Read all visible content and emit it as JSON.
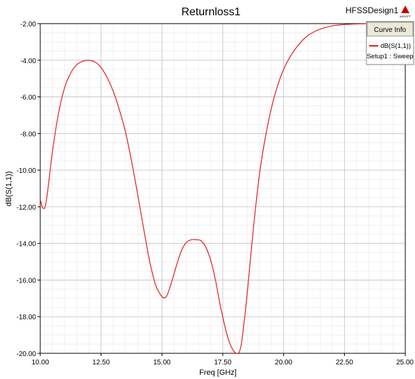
{
  "header": {
    "design_name": "HFSSDesign1",
    "logo_text": "ANSOFT"
  },
  "legend": {
    "title": "Curve Info",
    "entry_name": "dB(S(1,1))",
    "entry_setup": "Setup1 : Sweep"
  },
  "colors": {
    "series": "#e41a1c",
    "grid_major": "#bfbfbf",
    "grid_minor": "#e6e6e6",
    "legend_bg": "#ece9d8"
  },
  "chart_data": {
    "type": "line",
    "title": "Returnloss1",
    "xlabel": "Freq [GHz]",
    "ylabel": "dB(S(1,1))",
    "xlim": [
      10,
      25
    ],
    "ylim": [
      -20,
      -2
    ],
    "x_ticks": [
      "10.00",
      "12.50",
      "15.00",
      "17.50",
      "20.00",
      "22.50",
      "25.00"
    ],
    "y_ticks": [
      "-2.00",
      "-4.00",
      "-6.00",
      "-8.00",
      "-10.00",
      "-12.00",
      "-14.00",
      "-16.00",
      "-18.00",
      "-20.00"
    ],
    "grid": true,
    "legend_position": "top-right",
    "series": [
      {
        "name": "dB(S(1,1))",
        "x": [
          10.0,
          10.1,
          10.2,
          10.3,
          10.5,
          10.75,
          11.0,
          11.25,
          11.5,
          11.75,
          12.0,
          12.25,
          12.5,
          12.75,
          13.0,
          13.25,
          13.5,
          13.75,
          14.0,
          14.25,
          14.5,
          14.75,
          15.0,
          15.15,
          15.25,
          15.4,
          15.6,
          15.8,
          16.0,
          16.2,
          16.4,
          16.6,
          16.8,
          17.0,
          17.2,
          17.4,
          17.6,
          17.8,
          18.0,
          18.15,
          18.25,
          18.35,
          18.5,
          18.75,
          19.0,
          19.25,
          19.5,
          19.75,
          20.0,
          20.25,
          20.5,
          20.75,
          21.0,
          21.25,
          21.5,
          21.75,
          22.0,
          22.25,
          22.5,
          22.75,
          23.0,
          23.25,
          23.5,
          23.75,
          24.0,
          24.25,
          24.5,
          24.75,
          25.0
        ],
        "values": [
          -11.6,
          -12.05,
          -12.0,
          -11.2,
          -9.0,
          -6.9,
          -5.5,
          -4.7,
          -4.25,
          -4.05,
          -4.0,
          -4.1,
          -4.4,
          -4.95,
          -5.7,
          -6.7,
          -7.9,
          -9.5,
          -11.3,
          -13.2,
          -15.0,
          -16.3,
          -16.9,
          -16.95,
          -16.7,
          -16.1,
          -15.2,
          -14.4,
          -13.95,
          -13.8,
          -13.8,
          -13.85,
          -14.2,
          -14.9,
          -16.0,
          -17.4,
          -18.6,
          -19.5,
          -19.95,
          -19.98,
          -19.6,
          -18.6,
          -16.8,
          -13.3,
          -10.3,
          -8.2,
          -6.6,
          -5.4,
          -4.5,
          -3.85,
          -3.35,
          -2.95,
          -2.65,
          -2.45,
          -2.3,
          -2.2,
          -2.12,
          -2.08,
          -2.05,
          -2.03,
          -2.02,
          -2.01,
          -2.0,
          -2.0,
          -2.0,
          -2.0,
          -2.0,
          -2.0,
          -2.0
        ]
      }
    ]
  }
}
